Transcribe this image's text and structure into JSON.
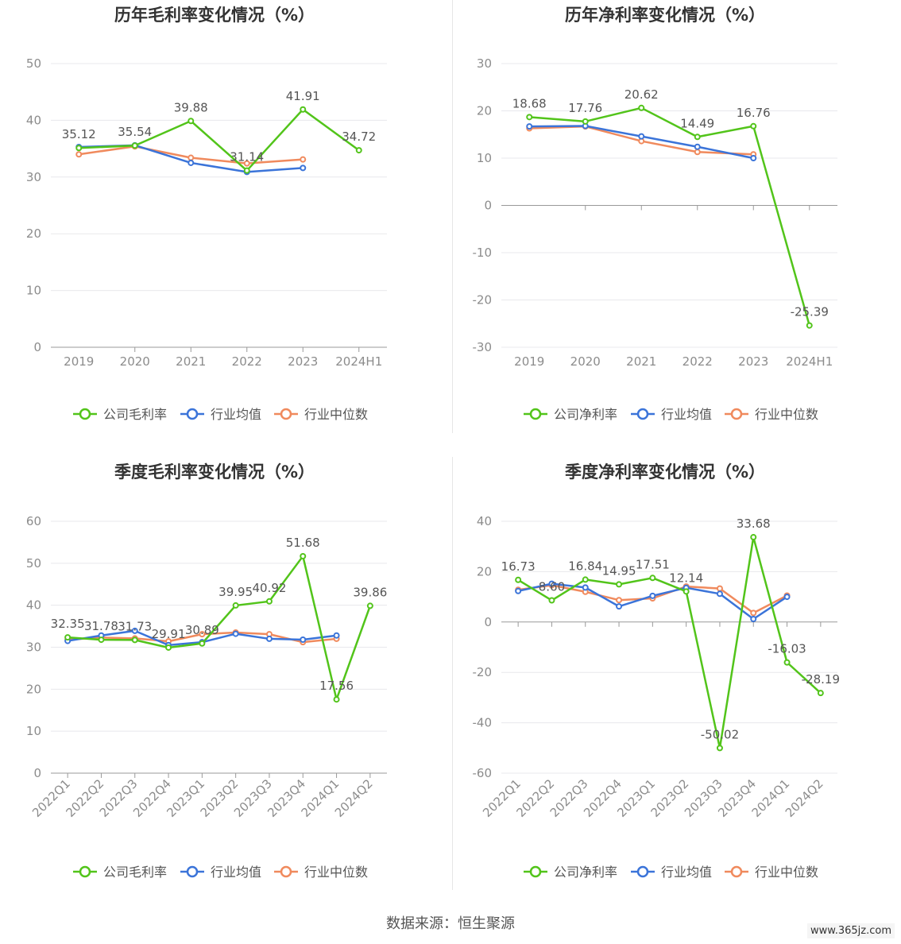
{
  "footer": {
    "source": "数据来源：恒生聚源"
  },
  "watermark": "www.365jz.com",
  "colors": {
    "company": "#52c41a",
    "industry_avg": "#3b74d9",
    "industry_median": "#f08a5d",
    "grid": "#e8e8ec",
    "axis": "#9a9a9a"
  },
  "chart_data": [
    {
      "id": "annual-gross",
      "type": "line",
      "title": "历年毛利率变化情况（%）",
      "categories": [
        "2019",
        "2020",
        "2021",
        "2022",
        "2023",
        "2024H1"
      ],
      "ylim": [
        0,
        50
      ],
      "yticks": [
        0,
        10,
        20,
        30,
        40,
        50
      ],
      "rotate_x": false,
      "series": [
        {
          "name": "公司毛利率",
          "color": "#52c41a",
          "values": [
            35.12,
            35.54,
            39.88,
            31.14,
            41.91,
            34.72
          ],
          "labels": [
            "35.12",
            "35.54",
            "39.88",
            "31.14",
            "41.91",
            "34.72"
          ]
        },
        {
          "name": "行业均值",
          "color": "#3b74d9",
          "values": [
            35.3,
            35.6,
            32.5,
            30.9,
            31.6,
            null
          ]
        },
        {
          "name": "行业中位数",
          "color": "#f08a5d",
          "values": [
            34.0,
            35.4,
            33.4,
            32.4,
            33.1,
            null
          ]
        }
      ]
    },
    {
      "id": "annual-net",
      "type": "line",
      "title": "历年净利率变化情况（%）",
      "categories": [
        "2019",
        "2020",
        "2021",
        "2022",
        "2023",
        "2024H1"
      ],
      "ylim": [
        -30,
        30
      ],
      "yticks": [
        -30,
        -20,
        -10,
        0,
        10,
        20,
        30
      ],
      "rotate_x": false,
      "series": [
        {
          "name": "公司净利率",
          "color": "#52c41a",
          "values": [
            18.68,
            17.76,
            20.62,
            14.49,
            16.76,
            -25.39
          ],
          "labels": [
            "18.68",
            "17.76",
            "20.62",
            "14.49",
            "16.76",
            "-25.39"
          ]
        },
        {
          "name": "行业均值",
          "color": "#3b74d9",
          "values": [
            16.7,
            16.8,
            14.6,
            12.4,
            10.0,
            null
          ]
        },
        {
          "name": "行业中位数",
          "color": "#f08a5d",
          "values": [
            16.3,
            16.7,
            13.6,
            11.3,
            10.8,
            null
          ]
        }
      ]
    },
    {
      "id": "quarterly-gross",
      "type": "line",
      "title": "季度毛利率变化情况（%）",
      "categories": [
        "2022Q1",
        "2022Q2",
        "2022Q3",
        "2022Q4",
        "2023Q1",
        "2023Q2",
        "2023Q3",
        "2023Q4",
        "2024Q1",
        "2024Q2"
      ],
      "ylim": [
        0,
        60
      ],
      "yticks": [
        0,
        10,
        20,
        30,
        40,
        50,
        60
      ],
      "rotate_x": true,
      "series": [
        {
          "name": "公司毛利率",
          "color": "#52c41a",
          "values": [
            32.35,
            31.78,
            31.73,
            29.91,
            30.89,
            39.95,
            40.92,
            51.68,
            17.56,
            39.86
          ],
          "labels": [
            "32.35",
            "31.78",
            "31.73",
            "29.91",
            "30.89",
            "39.95",
            "40.92",
            "51.68",
            "17.56",
            "39.86"
          ]
        },
        {
          "name": "行业均值",
          "color": "#3b74d9",
          "values": [
            31.5,
            32.8,
            33.9,
            30.5,
            31.2,
            33.2,
            32.0,
            31.8,
            32.8,
            null
          ]
        },
        {
          "name": "行业中位数",
          "color": "#f08a5d",
          "values": [
            31.8,
            32.3,
            32.1,
            31.4,
            33.1,
            33.5,
            33.1,
            31.2,
            32.0,
            null
          ]
        }
      ]
    },
    {
      "id": "quarterly-net",
      "type": "line",
      "title": "季度净利率变化情况（%）",
      "categories": [
        "2022Q1",
        "2022Q2",
        "2022Q3",
        "2022Q4",
        "2023Q1",
        "2023Q2",
        "2023Q3",
        "2023Q4",
        "2024Q1",
        "2024Q2"
      ],
      "ylim": [
        -60,
        40
      ],
      "yticks": [
        -60,
        -40,
        -20,
        0,
        20,
        40
      ],
      "rotate_x": true,
      "series": [
        {
          "name": "公司净利率",
          "color": "#52c41a",
          "values": [
            16.73,
            8.6,
            16.84,
            14.95,
            17.51,
            12.14,
            -50.02,
            33.68,
            -16.03,
            -28.19
          ],
          "labels": [
            "16.73",
            "8.60",
            "16.84",
            "14.95",
            "17.51",
            "12.14",
            "-50.02",
            "33.68",
            "-16.03",
            "-28.19"
          ]
        },
        {
          "name": "行业均值",
          "color": "#3b74d9",
          "values": [
            12.3,
            15.2,
            13.7,
            6.2,
            10.4,
            13.6,
            11.2,
            1.2,
            10.0,
            null
          ]
        },
        {
          "name": "行业中位数",
          "color": "#f08a5d",
          "values": [
            12.8,
            14.6,
            12.0,
            8.7,
            9.4,
            14.1,
            13.3,
            3.6,
            10.5,
            null
          ]
        }
      ]
    }
  ]
}
